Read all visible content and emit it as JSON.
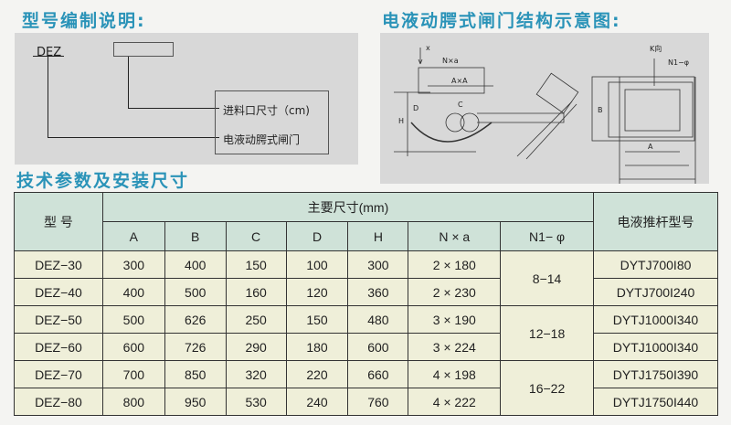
{
  "model_section": {
    "title": "型号编制说明:",
    "code": "DEZ",
    "label_size": "进料口尺寸（cm)",
    "label_type": "电液动腭式闸门"
  },
  "diagram_section": {
    "title": "电液动腭式闸门结构示意图:",
    "labels": {
      "x": "x",
      "nxa": "N×a",
      "axa": "A×A",
      "c": "C",
      "d": "D",
      "h": "H",
      "k": "K向",
      "n1": "N1−φ",
      "b": "B",
      "a": "A"
    }
  },
  "table_section": {
    "title": "技术参数及安装尺寸",
    "header": {
      "model": "型  号",
      "main": "主要尺寸(mm)",
      "cols": [
        "A",
        "B",
        "C",
        "D",
        "H",
        "N × a",
        "N1− φ"
      ],
      "pusher": "电液推杆型号"
    },
    "rows": [
      [
        "DEZ−30",
        "300",
        "400",
        "150",
        "100",
        "300",
        "2 × 180",
        "DYTJ700I80"
      ],
      [
        "DEZ−40",
        "400",
        "500",
        "160",
        "120",
        "360",
        "2 × 230",
        "DYTJ700I240"
      ],
      [
        "DEZ−50",
        "500",
        "626",
        "250",
        "150",
        "480",
        "3 × 190",
        "DYTJ1000I340"
      ],
      [
        "DEZ−60",
        "600",
        "726",
        "290",
        "180",
        "600",
        "3 × 224",
        "DYTJ1000I340"
      ],
      [
        "DEZ−70",
        "700",
        "850",
        "320",
        "220",
        "660",
        "4 × 198",
        "DYTJ1750I390"
      ],
      [
        "DEZ−80",
        "800",
        "950",
        "530",
        "240",
        "760",
        "4 × 222",
        "DYTJ1750I440"
      ]
    ],
    "n1_groups": [
      "8−14",
      "12−18",
      "16−22"
    ]
  },
  "colors": {
    "heading": "#2a93b8",
    "header_bg": "#cfe2d8",
    "row_bg": "#efefd9",
    "panel": "#d8d8d8"
  }
}
